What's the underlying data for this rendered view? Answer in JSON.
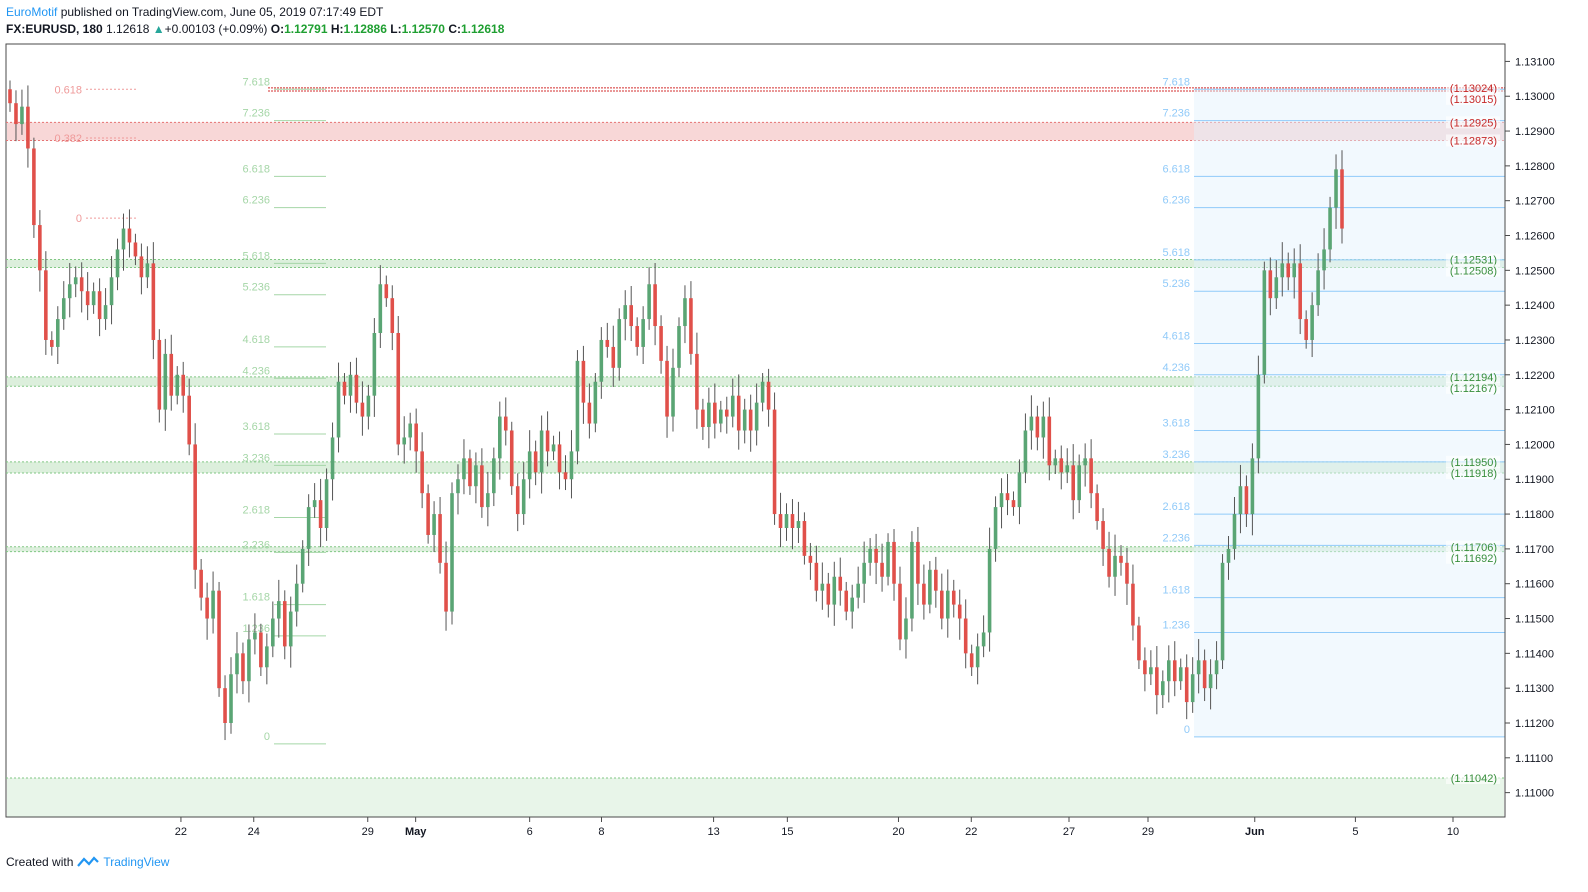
{
  "header": {
    "author": "EuroMotif",
    "published_text": " published on TradingView.com, June 05, 2019 07:17:49 EDT",
    "symbol": "FX:EURUSD, 180",
    "last": "1.12618",
    "change": "+0.00103 (+0.09%)",
    "o_label": "O:",
    "o_value": "1.12791",
    "h_label": "H:",
    "h_value": "1.12886",
    "l_label": "L:",
    "l_value": "1.12570",
    "c_label": "C:",
    "c_value": "1.12618"
  },
  "footer": {
    "created_with": "Created with",
    "brand": "TradingView"
  },
  "chart_data": {
    "type": "candlestick",
    "symbol": "FX:EURUSD",
    "timeframe": "180",
    "ylim": [
      1.1093,
      1.1315
    ],
    "y_ticks": [
      "1.11000",
      "1.11100",
      "1.11200",
      "1.11300",
      "1.11400",
      "1.11500",
      "1.11600",
      "1.11700",
      "1.11800",
      "1.11900",
      "1.12000",
      "1.12100",
      "1.12200",
      "1.12300",
      "1.12400",
      "1.12500",
      "1.12600",
      "1.12700",
      "1.12800",
      "1.12900",
      "1.13000",
      "1.13100"
    ],
    "x_ticks": [
      {
        "label": "22",
        "pos": 0.073
      },
      {
        "label": "24",
        "pos": 0.149
      },
      {
        "label": "29",
        "pos": 0.268
      },
      {
        "label": "May",
        "pos": 0.318,
        "bold": true
      },
      {
        "label": "6",
        "pos": 0.437
      },
      {
        "label": "8",
        "pos": 0.512
      },
      {
        "label": "13",
        "pos": 0.629
      },
      {
        "label": "15",
        "pos": 0.706
      },
      {
        "label": "20",
        "pos": 0.822
      },
      {
        "label": "22",
        "pos": 0.898
      },
      {
        "label": "27",
        "pos": 1.0
      }
    ],
    "x_ticks_right": [
      {
        "label": "29",
        "pos": 0.0
      },
      {
        "label": "Jun",
        "pos": 0.35,
        "bold": true
      },
      {
        "label": "5",
        "pos": 0.68
      },
      {
        "label": "10",
        "pos": 1.0
      }
    ],
    "price_labels": [
      {
        "text": "(1.13024)",
        "price": 1.13024,
        "color": "#c62828"
      },
      {
        "text": "(1.13015)",
        "price": 1.13015,
        "color": "#c62828"
      },
      {
        "text": "(1.12925)",
        "price": 1.12925,
        "color": "#c62828"
      },
      {
        "text": "(1.12873)",
        "price": 1.12873,
        "color": "#c62828"
      },
      {
        "text": "(1.12531)",
        "price": 1.12531,
        "color": "#388e3c"
      },
      {
        "text": "(1.12508)",
        "price": 1.12508,
        "color": "#388e3c"
      },
      {
        "text": "(1.12194)",
        "price": 1.12194,
        "color": "#388e3c"
      },
      {
        "text": "(1.12167)",
        "price": 1.12167,
        "color": "#388e3c"
      },
      {
        "text": "(1.11950)",
        "price": 1.1195,
        "color": "#388e3c"
      },
      {
        "text": "(1.11918)",
        "price": 1.11918,
        "color": "#388e3c"
      },
      {
        "text": "(1.11706)",
        "price": 1.11706,
        "color": "#388e3c"
      },
      {
        "text": "(1.11692)",
        "price": 1.11692,
        "color": "#388e3c"
      },
      {
        "text": "(1.11042)",
        "price": 1.11042,
        "color": "#388e3c"
      }
    ],
    "zones": [
      {
        "top": 1.12925,
        "bottom": 1.12873,
        "color": "#f8d7d7",
        "line": "#e57373"
      },
      {
        "top": 1.12531,
        "bottom": 1.12508,
        "color": "#dcefdc",
        "line": "#81c784"
      },
      {
        "top": 1.12194,
        "bottom": 1.12167,
        "color": "#dcefdc",
        "line": "#81c784"
      },
      {
        "top": 1.1195,
        "bottom": 1.11918,
        "color": "#dcefdc",
        "line": "#81c784"
      },
      {
        "top": 1.11706,
        "bottom": 1.11692,
        "color": "#dcefdc",
        "line": "#81c784"
      },
      {
        "top": 1.11042,
        "bottom": 1.1093,
        "color": "#e8f5e9",
        "line": "#81c784"
      }
    ],
    "red_lines": [
      1.13024,
      1.13015
    ],
    "fib_left": {
      "levels": [
        {
          "label": "0.618",
          "price": 1.1302
        },
        {
          "label": "0.382",
          "price": 1.1288
        },
        {
          "label": "0",
          "price": 1.1265
        }
      ],
      "color": "#ef9a9a"
    },
    "fib_mid": {
      "levels": [
        {
          "label": "7.618",
          "price": 1.1302
        },
        {
          "label": "7.236",
          "price": 1.1293
        },
        {
          "label": "6.618",
          "price": 1.1277
        },
        {
          "label": "6.236",
          "price": 1.1268
        },
        {
          "label": "5.618",
          "price": 1.1252
        },
        {
          "label": "5.236",
          "price": 1.1243
        },
        {
          "label": "4.618",
          "price": 1.1228
        },
        {
          "label": "4.236",
          "price": 1.1219
        },
        {
          "label": "3.618",
          "price": 1.1203
        },
        {
          "label": "3.236",
          "price": 1.1194
        },
        {
          "label": "2.618",
          "price": 1.1179
        },
        {
          "label": "2.236",
          "price": 1.1169
        },
        {
          "label": "1.618",
          "price": 1.1154
        },
        {
          "label": "1.236",
          "price": 1.1145
        },
        {
          "label": "0",
          "price": 1.1114
        }
      ],
      "color": "#a5d6a7"
    },
    "fib_right": {
      "levels": [
        {
          "label": "7.618",
          "price": 1.1302
        },
        {
          "label": "7.236",
          "price": 1.1293
        },
        {
          "label": "6.618",
          "price": 1.1277
        },
        {
          "label": "6.236",
          "price": 1.1268
        },
        {
          "label": "5.618",
          "price": 1.1253
        },
        {
          "label": "5.236",
          "price": 1.1244
        },
        {
          "label": "4.618",
          "price": 1.1229
        },
        {
          "label": "4.236",
          "price": 1.122
        },
        {
          "label": "3.618",
          "price": 1.1204
        },
        {
          "label": "3.236",
          "price": 1.1195
        },
        {
          "label": "2.618",
          "price": 1.118
        },
        {
          "label": "2.236",
          "price": 1.1171
        },
        {
          "label": "1.618",
          "price": 1.1156
        },
        {
          "label": "1.236",
          "price": 1.1146
        },
        {
          "label": "0",
          "price": 1.1116
        }
      ],
      "color": "#90caf9"
    },
    "closes": [
      1.1298,
      1.1292,
      1.1297,
      1.1285,
      1.1263,
      1.125,
      1.123,
      1.1228,
      1.1236,
      1.1242,
      1.1246,
      1.1248,
      1.1244,
      1.124,
      1.1244,
      1.1236,
      1.124,
      1.1248,
      1.1256,
      1.1262,
      1.1258,
      1.1254,
      1.1248,
      1.1252,
      1.123,
      1.121,
      1.1226,
      1.1214,
      1.122,
      1.1214,
      1.12,
      1.1164,
      1.1156,
      1.115,
      1.1158,
      1.113,
      1.112,
      1.1134,
      1.114,
      1.1132,
      1.1144,
      1.1146,
      1.1136,
      1.1142,
      1.115,
      1.1155,
      1.1142,
      1.1152,
      1.116,
      1.117,
      1.1182,
      1.1184,
      1.1176,
      1.119,
      1.1202,
      1.1218,
      1.1214,
      1.122,
      1.1212,
      1.1208,
      1.1214,
      1.1232,
      1.1246,
      1.1242,
      1.1232,
      1.12,
      1.1202,
      1.1206,
      1.1198,
      1.1186,
      1.1174,
      1.118,
      1.1166,
      1.1152,
      1.1186,
      1.119,
      1.1196,
      1.1188,
      1.1194,
      1.1182,
      1.1186,
      1.1196,
      1.1208,
      1.1204,
      1.1188,
      1.118,
      1.119,
      1.1198,
      1.1192,
      1.1204,
      1.1198,
      1.12,
      1.1192,
      1.119,
      1.1198,
      1.1224,
      1.1212,
      1.1206,
      1.1218,
      1.123,
      1.1228,
      1.1222,
      1.1236,
      1.124,
      1.1234,
      1.1228,
      1.1236,
      1.1246,
      1.1234,
      1.1224,
      1.1208,
      1.1222,
      1.1234,
      1.1242,
      1.1226,
      1.121,
      1.1205,
      1.1212,
      1.1206,
      1.121,
      1.1208,
      1.1214,
      1.1204,
      1.121,
      1.1204,
      1.1212,
      1.1218,
      1.121,
      1.118,
      1.1176,
      1.118,
      1.1176,
      1.1178,
      1.1168,
      1.1166,
      1.1158,
      1.116,
      1.1154,
      1.1162,
      1.1158,
      1.1152,
      1.1156,
      1.116,
      1.1166,
      1.117,
      1.1166,
      1.1162,
      1.1172,
      1.116,
      1.1144,
      1.115,
      1.1172,
      1.116,
      1.1154,
      1.1164,
      1.1158,
      1.115,
      1.1158,
      1.1154,
      1.115,
      1.114,
      1.1136,
      1.1142,
      1.1146,
      1.117,
      1.1182,
      1.1186,
      1.1184,
      1.1182,
      1.1192,
      1.1204,
      1.1208,
      1.1202,
      1.1208,
      1.1194,
      1.1196,
      1.1192,
      1.1194,
      1.1184,
      1.1194,
      1.1196,
      1.1186,
      1.1178,
      1.117,
      1.1162,
      1.1168,
      1.1166,
      1.116,
      1.1148,
      1.1138,
      1.1134,
      1.1136,
      1.1128,
      1.1132,
      1.1138,
      1.1132,
      1.1136,
      1.1126,
      1.1134,
      1.1138,
      1.113,
      1.1134,
      1.1138,
      1.1166,
      1.117,
      1.118,
      1.1188,
      1.118,
      1.1196,
      1.122,
      1.125,
      1.1242,
      1.1248,
      1.1252,
      1.1248,
      1.1252,
      1.1236,
      1.123,
      1.124,
      1.125,
      1.1256,
      1.1268,
      1.1279,
      1.1262
    ]
  }
}
